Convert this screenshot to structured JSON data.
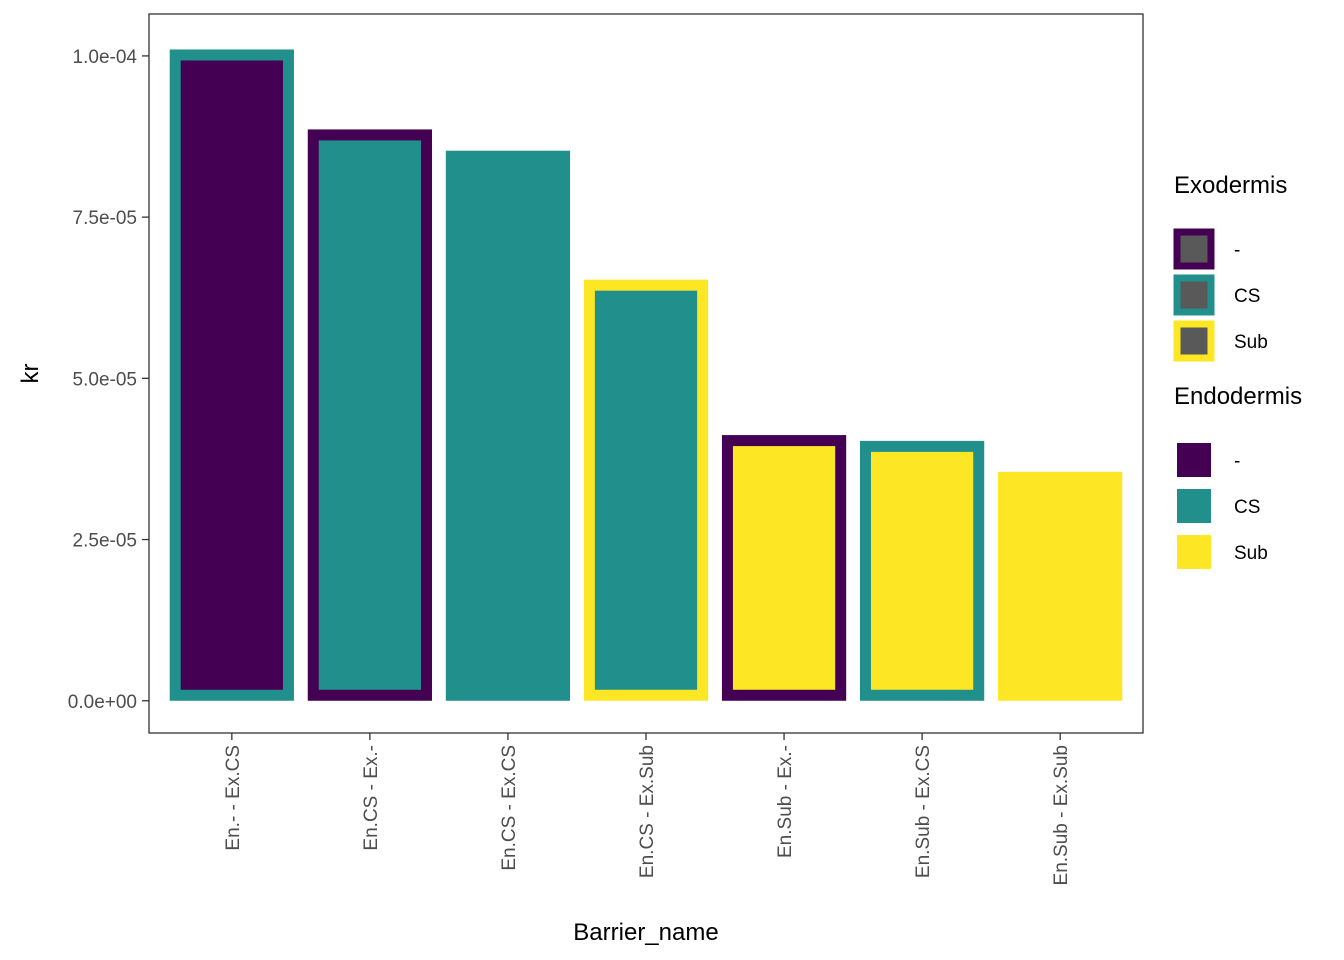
{
  "chart_data": {
    "type": "bar",
    "title": "",
    "xlabel": "Barrier_name",
    "ylabel": "kr",
    "ylim": [
      -5e-06,
      0.0001065
    ],
    "y_ticks": [
      0.0,
      2.5e-05,
      5e-05,
      7.5e-05,
      0.0001
    ],
    "y_tick_labels": [
      "0.0e+00",
      "2.5e-05",
      "5.0e-05",
      "7.5e-05",
      "1.0e-04"
    ],
    "grid": false,
    "fill_variable": "Endodermis",
    "outline_variable": "Exodermis",
    "categories": [
      "En.- - Ex.CS",
      "En.CS - Ex.-",
      "En.CS - Ex.CS",
      "En.CS - Ex.Sub",
      "En.Sub - Ex.-",
      "En.Sub - Ex.CS",
      "En.Sub - Ex.Sub"
    ],
    "values": [
      0.000101,
      8.86e-05,
      8.53e-05,
      6.53e-05,
      4.12e-05,
      4.03e-05,
      3.55e-05
    ],
    "endodermis": [
      "-",
      "CS",
      "CS",
      "CS",
      "Sub",
      "Sub",
      "Sub"
    ],
    "exodermis": [
      "CS",
      "-",
      "CS",
      "Sub",
      "-",
      "CS",
      "Sub"
    ],
    "palette": {
      "-": "#440154",
      "CS": "#21908C",
      "Sub": "#FDE725"
    },
    "legend_neutral_fill": "#595959",
    "legend_position": "right",
    "legends": [
      {
        "title": "Exodermis",
        "style": "outline",
        "items": [
          "-",
          "CS",
          "Sub"
        ]
      },
      {
        "title": "Endodermis",
        "style": "fill",
        "items": [
          "-",
          "CS",
          "Sub"
        ]
      }
    ]
  }
}
